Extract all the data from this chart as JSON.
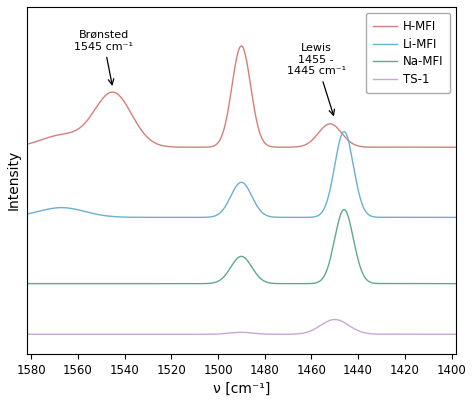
{
  "xlabel": "ν [cm⁻¹]",
  "ylabel": "Intensity",
  "xticks": [
    1580,
    1560,
    1540,
    1520,
    1500,
    1480,
    1460,
    1440,
    1420,
    1400
  ],
  "colors": {
    "H-MFI": "#d4807a",
    "Li-MFI": "#6ab0d0",
    "Na-MFI": "#5dab8a",
    "TS-1": "#c8a8d0"
  },
  "offsets": [
    0.52,
    0.34,
    0.17,
    0.04
  ],
  "legend_labels": [
    "H-MFI",
    "Li-MFI",
    "Na-MFI",
    "TS-1"
  ],
  "background_color": "#ffffff"
}
